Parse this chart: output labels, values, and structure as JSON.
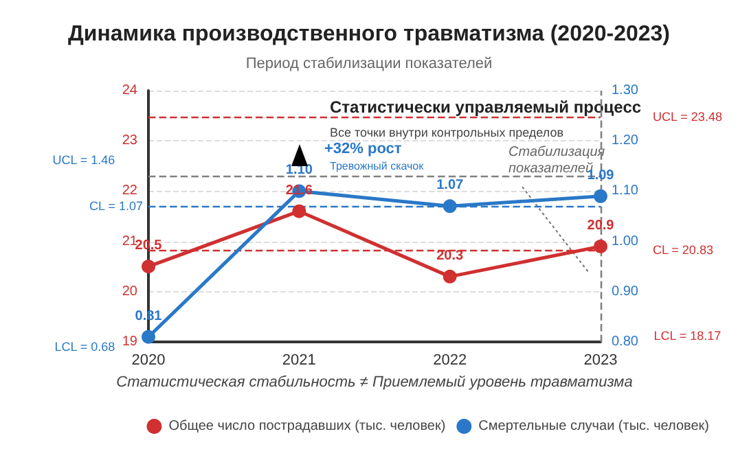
{
  "chart_data": {
    "type": "line",
    "title": "Динамика производственного травматизма (2020-2023)",
    "subtitle": "Период стабилизации показателей",
    "xlabel": "Статистическая стабильность ≠ Приемлемый уровень травматизма",
    "categories": [
      "2020",
      "2021",
      "2022",
      "2023"
    ],
    "series": [
      {
        "name": "Общее число пострадавших (тыс. человек)",
        "color": "#d03030",
        "values": [
          20.5,
          21.6,
          20.3,
          20.9
        ],
        "value_labels": [
          "20.5",
          "21.6",
          "20.3",
          "20.9"
        ]
      },
      {
        "name": "Смертельные случаи (тыс. человек)",
        "color": "#2a78c8",
        "values": [
          0.81,
          1.1,
          1.07,
          1.09
        ],
        "value_labels": [
          "0.81",
          "1.10",
          "1.07",
          "1.09"
        ],
        "axis": "y2"
      }
    ],
    "ylim": [
      19,
      24
    ],
    "yticks": [
      19,
      20,
      21,
      22,
      23,
      24
    ],
    "y2lim": [
      0.8,
      1.3
    ],
    "y2ticks": [
      {
        "value": 0.8,
        "label": "0.80"
      },
      {
        "value": 0.9,
        "label": "0.90"
      },
      {
        "value": 1.0,
        "label": "1.00"
      },
      {
        "value": 1.1,
        "label": "1.10"
      },
      {
        "value": 1.2,
        "label": "1.20"
      },
      {
        "value": 1.3,
        "label": "1.30"
      }
    ],
    "ref_lines": [
      {
        "axis": "y",
        "value": 23.48,
        "label": "UCL = 23.48",
        "color": "#d03030",
        "line_style": "dashed"
      },
      {
        "axis": "y",
        "value": 20.83,
        "label": "CL = 20.83",
        "color": "#d03030",
        "line_style": "dashed"
      },
      {
        "axis": "y",
        "value": 22.3,
        "label": null,
        "color": "#808080",
        "line_style": "dashed"
      },
      {
        "axis": "y2",
        "value": 1.07,
        "label": "CL = 1.07",
        "color": "#2a78c8",
        "line_style": "dashed"
      },
      {
        "axis": "x",
        "value": "2023",
        "label": null,
        "color": "#808080",
        "line_style": "dashed"
      }
    ],
    "annotations": [
      "Статистически управляемый процесс",
      "Все точки внутри контрольных пределов",
      "+32% рост",
      "Тревожный скачок",
      "Стабилизация показателей",
      "UCL = 1.46",
      "LCL = 0.68",
      "LCL = 18.17"
    ],
    "grid": "y",
    "legend": "bottom right",
    "marker": "circle",
    "line_style": "solid"
  }
}
